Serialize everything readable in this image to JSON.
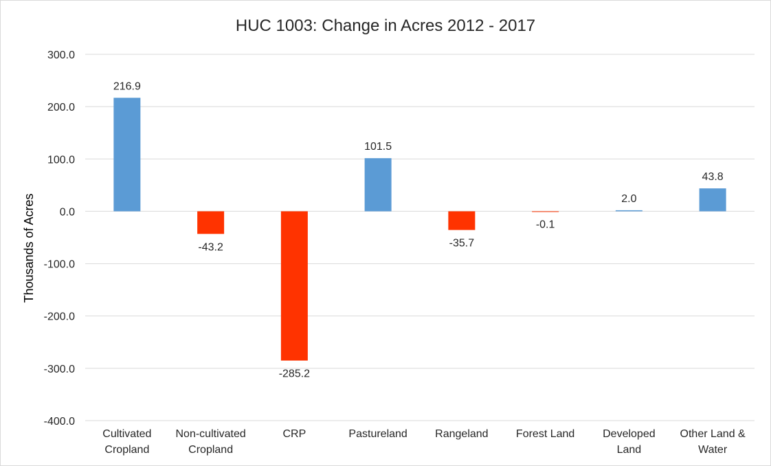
{
  "chart_data": {
    "type": "bar",
    "title": "HUC 1003: Change in Acres 2012 - 2017",
    "xlabel": "",
    "ylabel": "Thousands of Acres",
    "ylim": [
      -400,
      300
    ],
    "yticks": [
      300,
      200,
      100,
      0,
      -100,
      -200,
      -300,
      -400
    ],
    "ytick_labels": [
      "300.0",
      "200.0",
      "100.0",
      "0.0",
      "-100.0",
      "-200.0",
      "-300.0",
      "-400.0"
    ],
    "categories": [
      [
        "Cultivated",
        "Cropland"
      ],
      [
        "Non-cultivated",
        "Cropland"
      ],
      [
        "CRP"
      ],
      [
        "Pastureland"
      ],
      [
        "Rangeland"
      ],
      [
        "Forest Land"
      ],
      [
        "Developed",
        "Land"
      ],
      [
        "Other Land &",
        "Water"
      ]
    ],
    "values": [
      216.9,
      -43.2,
      -285.2,
      101.5,
      -35.7,
      -0.1,
      2.0,
      43.8
    ],
    "data_labels": [
      "216.9",
      "-43.2",
      "-285.2",
      "101.5",
      "-35.7",
      "-0.1",
      "2.0",
      "43.8"
    ],
    "grid": true,
    "legend": "none",
    "colors": {
      "positive": "#5b9bd5",
      "negative": "#ff3300"
    }
  }
}
